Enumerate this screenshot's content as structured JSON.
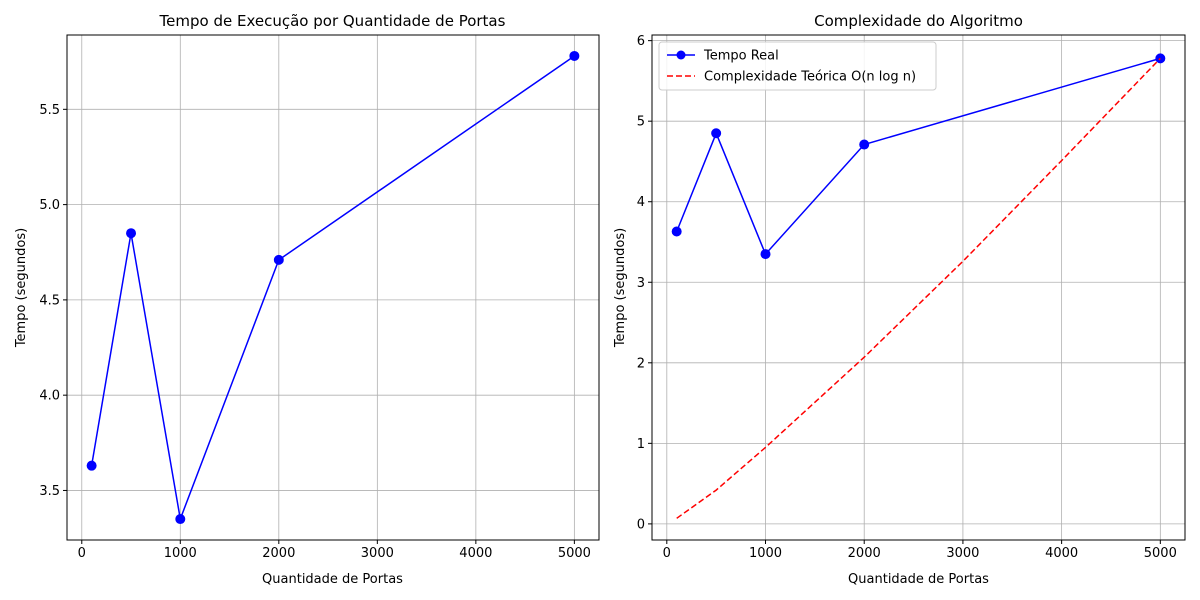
{
  "chart_data": [
    {
      "type": "line",
      "title": "Tempo de Execução por Quantidade de Portas",
      "xlabel": "Quantidade de Portas",
      "ylabel": "Tempo (segundos)",
      "xlim": [
        -150,
        5250
      ],
      "ylim": [
        3.24,
        5.89
      ],
      "xticks": [
        0,
        1000,
        2000,
        3000,
        4000,
        5000
      ],
      "xtick_labels": [
        "0",
        "1000",
        "2000",
        "3000",
        "4000",
        "5000"
      ],
      "yticks": [
        3.5,
        4.0,
        4.5,
        5.0,
        5.5
      ],
      "ytick_labels": [
        "3.5",
        "4.0",
        "4.5",
        "5.0",
        "5.5"
      ],
      "grid": true,
      "series": [
        {
          "color": "#0000ff",
          "style": "solid",
          "marker": "circle",
          "x": [
            100,
            500,
            1000,
            2000,
            5000
          ],
          "y": [
            3.63,
            4.85,
            3.35,
            4.71,
            5.78
          ]
        }
      ]
    },
    {
      "type": "line",
      "title": "Complexidade do Algoritmo",
      "xlabel": "Quantidade de Portas",
      "ylabel": "Tempo (segundos)",
      "xlim": [
        -150,
        5250
      ],
      "ylim": [
        -0.2,
        6.07
      ],
      "xticks": [
        0,
        1000,
        2000,
        3000,
        4000,
        5000
      ],
      "xtick_labels": [
        "0",
        "1000",
        "2000",
        "3000",
        "4000",
        "5000"
      ],
      "yticks": [
        0,
        1,
        2,
        3,
        4,
        5,
        6
      ],
      "ytick_labels": [
        "0",
        "1",
        "2",
        "3",
        "4",
        "5",
        "6"
      ],
      "grid": true,
      "legend": "top-left",
      "series": [
        {
          "name": "Tempo Real",
          "color": "#0000ff",
          "style": "solid",
          "marker": "circle",
          "x": [
            100,
            500,
            1000,
            2000,
            5000
          ],
          "y": [
            3.63,
            4.85,
            3.35,
            4.71,
            5.78
          ]
        },
        {
          "name": "Complexidade Teórica O(n log n)",
          "color": "#ff0000",
          "style": "dashed",
          "marker": "none",
          "x": [
            100,
            500,
            1000,
            2000,
            3000,
            4000,
            5000
          ],
          "y": [
            0.07,
            0.42,
            0.95,
            2.07,
            3.26,
            4.51,
            5.78
          ]
        }
      ]
    }
  ]
}
